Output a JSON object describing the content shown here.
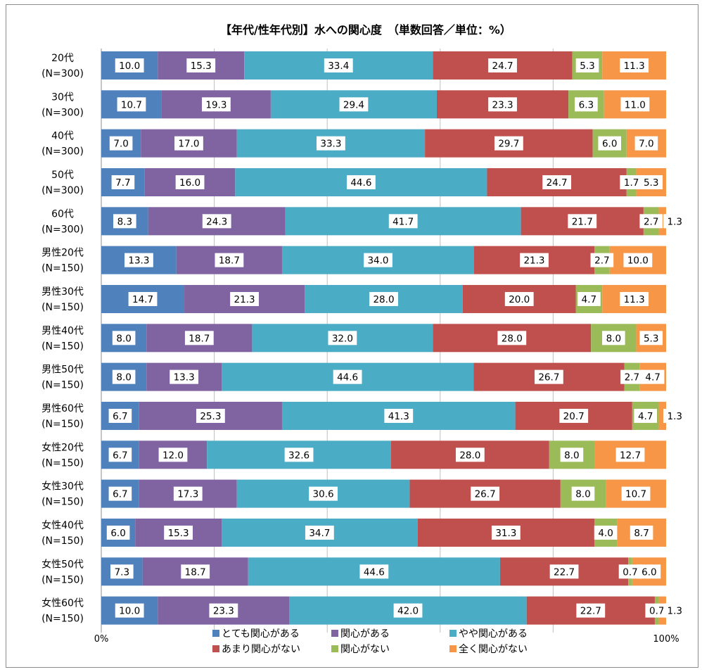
{
  "chart_data": {
    "type": "bar",
    "orientation": "horizontal",
    "stacked": "percent",
    "title": "【年代/性年代別】水への関心度　（単数回答／単位：%）",
    "categories": [
      [
        "20代",
        "(N=300)"
      ],
      [
        "30代",
        "(N=300)"
      ],
      [
        "40代",
        "(N=300)"
      ],
      [
        "50代",
        "(N=300)"
      ],
      [
        "60代",
        "(N=300)"
      ],
      [
        "男性20代",
        "(N=150)"
      ],
      [
        "男性30代",
        "(N=150)"
      ],
      [
        "男性40代",
        "(N=150)"
      ],
      [
        "男性50代",
        "(N=150)"
      ],
      [
        "男性60代",
        "(N=150)"
      ],
      [
        "女性20代",
        "(N=150)"
      ],
      [
        "女性30代",
        "(N=150)"
      ],
      [
        "女性40代",
        "(N=150)"
      ],
      [
        "女性50代",
        "(N=150)"
      ],
      [
        "女性60代",
        "(N=150)"
      ]
    ],
    "series": [
      {
        "name": "とても関心がある",
        "color": "#4f81bd",
        "values": [
          10.0,
          10.7,
          7.0,
          7.7,
          8.3,
          13.3,
          14.7,
          8.0,
          8.0,
          6.7,
          6.7,
          6.7,
          6.0,
          7.3,
          10.0
        ]
      },
      {
        "name": "関心がある",
        "color": "#8064a2",
        "values": [
          15.3,
          19.3,
          17.0,
          16.0,
          24.3,
          18.7,
          21.3,
          18.7,
          13.3,
          25.3,
          12.0,
          17.3,
          15.3,
          18.7,
          23.3
        ]
      },
      {
        "name": "やや関心がある",
        "color": "#4bacc6",
        "values": [
          33.4,
          29.4,
          33.3,
          44.6,
          41.7,
          34.0,
          28.0,
          32.0,
          44.6,
          41.3,
          32.6,
          30.6,
          34.7,
          44.6,
          42.0
        ]
      },
      {
        "name": "あまり関心がない",
        "color": "#c0504d",
        "values": [
          24.7,
          23.3,
          29.7,
          24.7,
          21.7,
          21.3,
          20.0,
          28.0,
          26.7,
          20.7,
          28.0,
          26.7,
          31.3,
          22.7,
          22.7
        ]
      },
      {
        "name": "関心がない",
        "color": "#9bbb59",
        "values": [
          5.3,
          6.3,
          6.0,
          1.7,
          2.7,
          2.7,
          4.7,
          8.0,
          2.7,
          4.7,
          8.0,
          8.0,
          4.0,
          0.7,
          0.7
        ]
      },
      {
        "name": "全く関心がない",
        "color": "#f79646",
        "values": [
          11.3,
          11.0,
          7.0,
          5.3,
          1.3,
          10.0,
          11.3,
          5.3,
          4.7,
          1.3,
          12.7,
          10.7,
          8.7,
          6.0,
          1.3
        ]
      }
    ],
    "xlim": [
      0,
      100
    ],
    "x_ticks": [
      "0%",
      "100%"
    ],
    "grid": true,
    "legend_position": "bottom"
  }
}
